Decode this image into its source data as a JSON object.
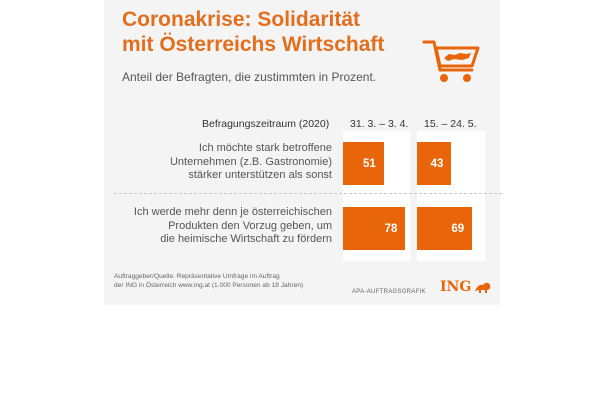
{
  "header": {
    "title_line1": "Coronakrise: Solidarität",
    "title_line2": "mit Österreichs Wirtschaft",
    "subtitle": "Anteil der Befragten, die zustimmten in Prozent.",
    "icon": "shopping-cart-austria-icon"
  },
  "colors": {
    "accent": "#e36f1e",
    "bar": "#e8650a"
  },
  "chart_data": {
    "type": "bar",
    "orientation": "horizontal",
    "period_label": "Befragungszeitraum (2020)",
    "categories": [
      [
        "Ich möchte stark betroffene",
        "Unternehmen (z.B. Gastronomie)",
        "stärker unterstützen als sonst"
      ],
      [
        "Ich werde mehr denn je österreichischen",
        "Produkten den Vorzug geben, um",
        "die heimische Wirtschaft zu fördern"
      ]
    ],
    "series": [
      {
        "name": "31. 3. – 3. 4.",
        "values": [
          51,
          78
        ]
      },
      {
        "name": "15. – 24. 5.",
        "values": [
          43,
          69
        ]
      }
    ],
    "xlim": [
      0,
      100
    ],
    "grid": false
  },
  "footer": {
    "source_line1": "Auftraggeber/Quelle: Repräsentative Umfrage im Auftrag",
    "source_line2": "der ING in Österreich www.ing.at (1.000 Personen ab 18 Jahren)",
    "agency": "APA-AUFTRAGSGRAFIK",
    "logo_text": "ING"
  }
}
